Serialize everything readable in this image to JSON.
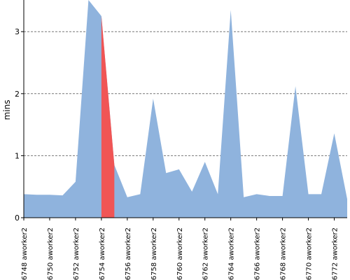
{
  "chart_data": {
    "type": "area",
    "ylabel": "mins",
    "ylim": [
      0,
      3.5
    ],
    "yticks": [
      "0",
      "1",
      "2",
      "3"
    ],
    "grid": "horizontal-dashed",
    "colors": {
      "area": "#8fb3dd",
      "highlight": "#f05555",
      "grid": "#777777",
      "axis": "#000000"
    },
    "x": [
      0,
      0.5,
      1,
      1.5,
      2,
      2.5,
      3,
      3.5,
      4,
      4.5,
      5,
      5.5,
      6,
      6.5,
      7,
      7.5,
      8,
      8.5,
      9,
      9.5,
      10,
      10.5,
      11,
      11.5,
      12,
      12.5
    ],
    "values": [
      0.38,
      0.37,
      0.37,
      0.36,
      0.58,
      3.7,
      3.25,
      0.85,
      0.33,
      0.38,
      1.92,
      0.72,
      0.78,
      0.42,
      0.9,
      0.38,
      3.35,
      0.33,
      0.38,
      0.35,
      0.35,
      2.12,
      0.38,
      0.38,
      1.36,
      0.3
    ],
    "highlight_range": [
      3,
      3.5
    ],
    "category_ticks": [
      {
        "x": 0,
        "label": "#6748 aworker2"
      },
      {
        "x": 1,
        "label": "#6750 aworker2"
      },
      {
        "x": 2,
        "label": "#6752 aworker2"
      },
      {
        "x": 3,
        "label": "#6754 aworker2"
      },
      {
        "x": 4,
        "label": "#6756 aworker2"
      },
      {
        "x": 5,
        "label": "#6758 aworker2"
      },
      {
        "x": 6,
        "label": "#6760 aworker2"
      },
      {
        "x": 7,
        "label": "#6762 aworker2"
      },
      {
        "x": 8,
        "label": "#6764 aworker2"
      },
      {
        "x": 9,
        "label": "#6766 aworker2"
      },
      {
        "x": 10,
        "label": "#6768 aworker2"
      },
      {
        "x": 11,
        "label": "#6770 aworker2"
      },
      {
        "x": 12,
        "label": "#6772 aworker2"
      }
    ]
  }
}
